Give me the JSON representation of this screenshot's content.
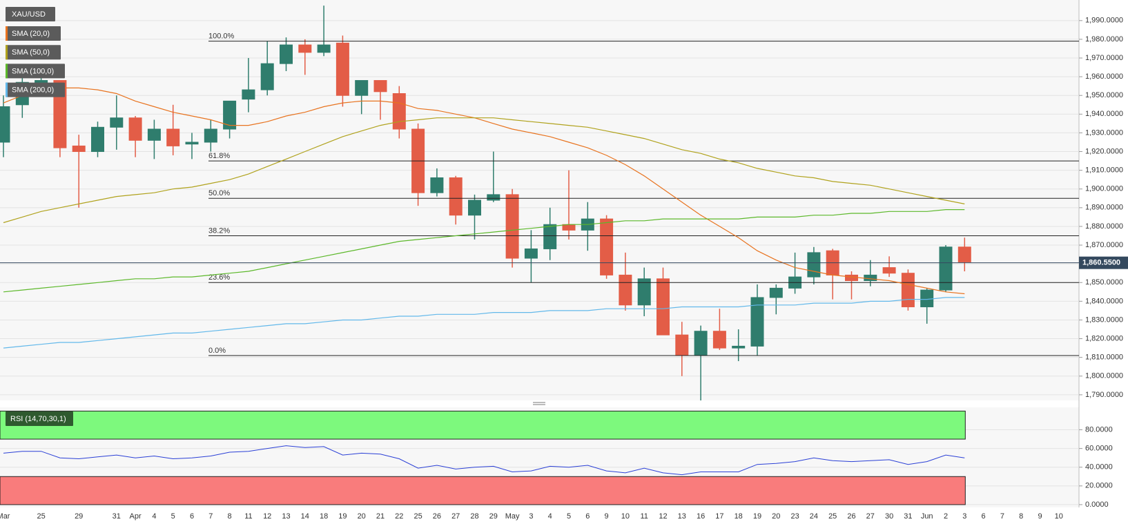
{
  "chart_data": [
    {
      "type": "candlestick",
      "title": "XAU/USD",
      "categories": [
        "Mar",
        null,
        "25",
        null,
        "29",
        null,
        "31",
        "Apr",
        "4",
        "5",
        "6",
        "7",
        "8",
        "11",
        "12",
        "13",
        "14",
        "18",
        "19",
        "20",
        "21",
        "22",
        "25",
        "26",
        "27",
        "28",
        "29",
        "May",
        "3",
        "4",
        "5",
        "6",
        "9",
        "10",
        "11",
        "12",
        "13",
        "16",
        "17",
        "18",
        "19",
        "20",
        "23",
        "24",
        "25",
        "26",
        "27",
        "30",
        "31",
        "Jun",
        "2",
        "3",
        "6",
        "7",
        "8",
        "9",
        "10"
      ],
      "open": [
        1925,
        1945,
        1952,
        1958,
        1923,
        1920,
        1933,
        1938,
        1926,
        1932,
        1924,
        1925,
        1932,
        1948,
        1953,
        1967,
        1977,
        1973,
        1978,
        1950,
        1958,
        1951,
        1932,
        1898,
        1906,
        1886,
        1894,
        1897,
        1863,
        1868,
        1881,
        1878,
        1884,
        1854,
        1838,
        1852,
        1822,
        1811,
        1824,
        1815,
        1816,
        1842,
        1847,
        1853,
        1867,
        1854,
        1851,
        1858,
        1855,
        1837,
        1846,
        1869,
        null,
        null,
        null,
        null,
        null
      ],
      "high": [
        1950,
        1966,
        1966,
        1958,
        1929,
        1936,
        1950,
        1939,
        1937,
        1945,
        1930,
        1937,
        1947,
        1970,
        1979,
        1981,
        1980,
        1998,
        1982,
        1958,
        1958,
        1955,
        1935,
        1911,
        1907,
        1897,
        1920,
        1900,
        1878,
        1890,
        1910,
        1893,
        1886,
        1866,
        1858,
        1858,
        1829,
        1827,
        1836,
        1825,
        1849,
        1849,
        1866,
        1869,
        1868,
        1856,
        1862,
        1864,
        1857,
        1847,
        1870,
        1874,
        null,
        null,
        null,
        null,
        null
      ],
      "low": [
        1917,
        1938,
        1950,
        1917,
        1890,
        1917,
        1921,
        1917,
        1916,
        1918,
        1916,
        1920,
        1927,
        1941,
        1950,
        1963,
        1961,
        1971,
        1944,
        1940,
        1937,
        1927,
        1891,
        1896,
        1881,
        1873,
        1893,
        1858,
        1850,
        1862,
        1873,
        1867,
        1852,
        1835,
        1832,
        1822,
        1800,
        1787,
        1814,
        1808,
        1811,
        1833,
        1844,
        1849,
        1841,
        1841,
        1848,
        1853,
        1835,
        1828,
        1845,
        1856,
        null,
        null,
        null,
        null,
        null
      ],
      "close": [
        1944,
        1957,
        1958,
        1922,
        1920,
        1933,
        1938,
        1926,
        1932,
        1923,
        1925,
        1932,
        1947,
        1953,
        1967,
        1977,
        1973,
        1977,
        1950,
        1958,
        1952,
        1932,
        1898,
        1906,
        1886,
        1894,
        1897,
        1863,
        1868,
        1881,
        1878,
        1884,
        1854,
        1838,
        1852,
        1822,
        1811,
        1824,
        1815,
        1816,
        1842,
        1847,
        1853,
        1866,
        1854,
        1851,
        1854,
        1855,
        1837,
        1846,
        1869,
        1861,
        null,
        null,
        null,
        null,
        null
      ],
      "up_color": "#2f7d6d",
      "down_color": "#e35d47",
      "overlays": [
        {
          "name": "SMA (20,0)",
          "color": "#e8731f",
          "values": [
            1946,
            1950,
            1953,
            1954,
            1954,
            1953,
            1951,
            1947,
            1944,
            1941,
            1939,
            1937,
            1934,
            1934,
            1936,
            1939,
            1941,
            1944,
            1946,
            1947,
            1947,
            1946,
            1943,
            1942,
            1940,
            1938,
            1935,
            1932,
            1930,
            1928,
            1925,
            1922,
            1918,
            1913,
            1907,
            1900,
            1893,
            1886,
            1880,
            1874,
            1867,
            1862,
            1858,
            1856,
            1854,
            1853,
            1852,
            1851,
            1849,
            1847,
            1845,
            1844,
            null,
            null,
            null,
            null,
            null
          ]
        },
        {
          "name": "SMA (50,0)",
          "color": "#b0a21c",
          "values": [
            1882,
            1885,
            1888,
            1890,
            1892,
            1894,
            1896,
            1897,
            1898,
            1900,
            1901,
            1903,
            1905,
            1908,
            1912,
            1916,
            1920,
            1924,
            1928,
            1931,
            1934,
            1936,
            1937,
            1938,
            1938,
            1938,
            1938,
            1937,
            1936,
            1935,
            1934,
            1933,
            1931,
            1929,
            1927,
            1924,
            1921,
            1919,
            1916,
            1914,
            1911,
            1909,
            1907,
            1906,
            1904,
            1903,
            1902,
            1900,
            1898,
            1896,
            1894,
            1892,
            null,
            null,
            null,
            null,
            null
          ]
        },
        {
          "name": "SMA (100,0)",
          "color": "#5cb82a",
          "values": [
            1845,
            1846,
            1847,
            1848,
            1849,
            1850,
            1851,
            1852,
            1852,
            1853,
            1853,
            1854,
            1855,
            1856,
            1858,
            1860,
            1862,
            1864,
            1866,
            1868,
            1870,
            1872,
            1873,
            1874,
            1875,
            1876,
            1877,
            1878,
            1879,
            1880,
            1881,
            1881,
            1882,
            1883,
            1883,
            1884,
            1884,
            1884,
            1884,
            1884,
            1885,
            1885,
            1885,
            1886,
            1886,
            1887,
            1887,
            1888,
            1888,
            1888,
            1889,
            1889,
            null,
            null,
            null,
            null,
            null
          ]
        },
        {
          "name": "SMA (200,0)",
          "color": "#62b8ea",
          "values": [
            1815,
            1816,
            1817,
            1818,
            1818,
            1819,
            1820,
            1821,
            1822,
            1823,
            1823,
            1824,
            1825,
            1826,
            1827,
            1828,
            1828,
            1829,
            1830,
            1830,
            1831,
            1832,
            1832,
            1833,
            1833,
            1833,
            1834,
            1834,
            1834,
            1835,
            1835,
            1835,
            1836,
            1836,
            1836,
            1836,
            1837,
            1837,
            1837,
            1837,
            1838,
            1838,
            1838,
            1839,
            1839,
            1839,
            1840,
            1840,
            1841,
            1841,
            1842,
            1842,
            null,
            null,
            null,
            null,
            null
          ]
        }
      ],
      "levels": [
        {
          "label": "100.0%",
          "value": 1979
        },
        {
          "label": "61.8%",
          "value": 1915
        },
        {
          "label": "50.0%",
          "value": 1895
        },
        {
          "label": "38.2%",
          "value": 1875
        },
        {
          "label": "23.6%",
          "value": 1850
        },
        {
          "label": "0.0%",
          "value": 1811
        }
      ],
      "last_price": {
        "value": 1860.55,
        "label": "1,860.5500"
      },
      "ylim": [
        1787,
        2001
      ],
      "yticks": [
        {
          "value": 1790,
          "label": "1,790.0000"
        },
        {
          "value": 1800,
          "label": "1,800.0000"
        },
        {
          "value": 1810,
          "label": "1,810.0000"
        },
        {
          "value": 1820,
          "label": "1,820.0000"
        },
        {
          "value": 1830,
          "label": "1,830.0000"
        },
        {
          "value": 1840,
          "label": "1,840.0000"
        },
        {
          "value": 1850,
          "label": "1,850.0000"
        },
        {
          "value": 1860,
          "label": "1,860.0000"
        },
        {
          "value": 1870,
          "label": "1,870.0000"
        },
        {
          "value": 1880,
          "label": "1,880.0000"
        },
        {
          "value": 1890,
          "label": "1,890.0000"
        },
        {
          "value": 1900,
          "label": "1,900.0000"
        },
        {
          "value": 1910,
          "label": "1,910.0000"
        },
        {
          "value": 1920,
          "label": "1,920.0000"
        },
        {
          "value": 1930,
          "label": "1,930.0000"
        },
        {
          "value": 1940,
          "label": "1,940.0000"
        },
        {
          "value": 1950,
          "label": "1,950.0000"
        },
        {
          "value": 1960,
          "label": "1,960.0000"
        },
        {
          "value": 1970,
          "label": "1,970.0000"
        },
        {
          "value": 1980,
          "label": "1,980.0000"
        },
        {
          "value": 1990,
          "label": "1,990.0000"
        }
      ],
      "grid": true
    },
    {
      "type": "line",
      "title": "RSI (14,70,30,1)",
      "series": [
        {
          "color": "#2a3fd6",
          "values": [
            55,
            57,
            57,
            50,
            49,
            51,
            53,
            50,
            52,
            49,
            50,
            52,
            56,
            57,
            60,
            63,
            61,
            62,
            53,
            55,
            54,
            49,
            39,
            42,
            38,
            40,
            41,
            35,
            36,
            41,
            40,
            42,
            36,
            34,
            39,
            34,
            32,
            35,
            35,
            35,
            43,
            44,
            46,
            50,
            47,
            46,
            47,
            48,
            43,
            46,
            53,
            50,
            null,
            null,
            null,
            null,
            null
          ]
        }
      ],
      "bands": [
        {
          "from": 70,
          "to": 100,
          "color": "#7df97d"
        },
        {
          "from": 0,
          "to": 30,
          "color": "#f97c7c"
        }
      ],
      "ylim": [
        -3,
        104
      ],
      "yticks": [
        {
          "value": 0,
          "label": "0.0000"
        },
        {
          "value": 20,
          "label": "20.0000"
        },
        {
          "value": 40,
          "label": "40.0000"
        },
        {
          "value": 60,
          "label": "60.0000"
        },
        {
          "value": 80,
          "label": "80.0000"
        }
      ],
      "grid": true
    }
  ]
}
